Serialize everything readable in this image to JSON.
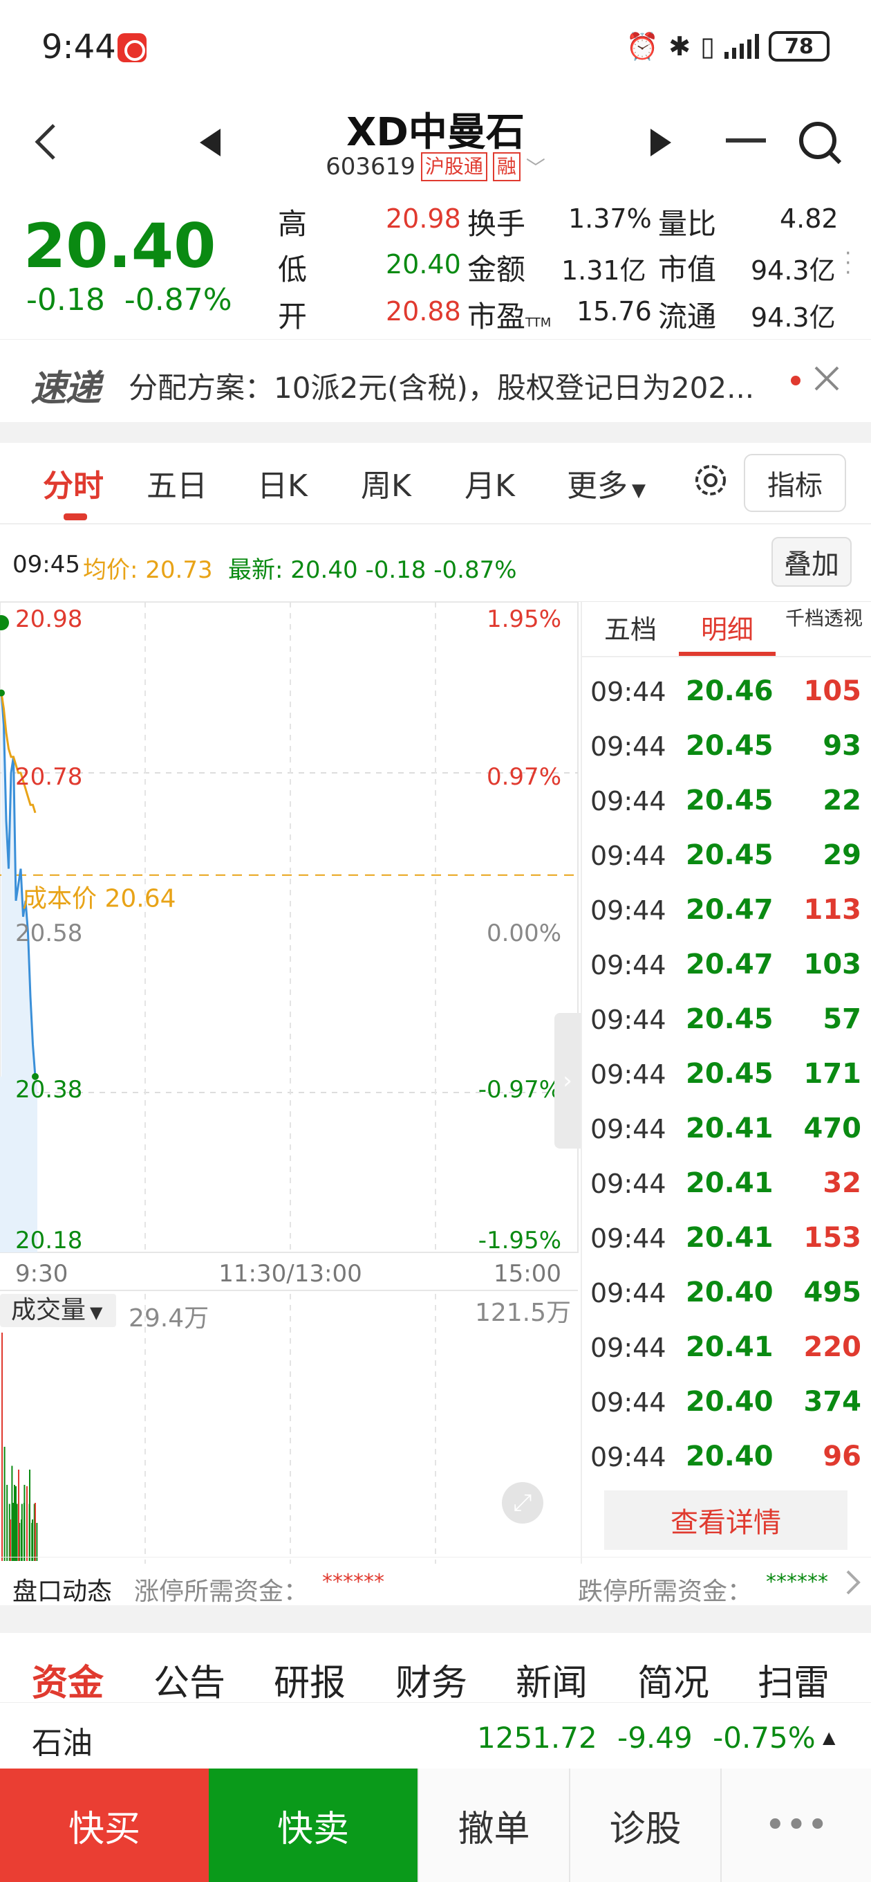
{
  "status_bar": {
    "time": "9:44",
    "battery": "78"
  },
  "header": {
    "title": "XD中曼石",
    "code": "603619",
    "tag_connect": "沪股通",
    "tag_margin": "融"
  },
  "quote": {
    "price": "20.40",
    "change": "-0.18",
    "change_pct": "-0.87%",
    "high_label": "高",
    "high": "20.98",
    "low_label": "低",
    "low": "20.40",
    "open_label": "开",
    "open": "20.88",
    "turnover_label": "换手",
    "turnover": "1.37%",
    "amount_label": "金额",
    "amount": "1.31亿",
    "pe_label": "市盈",
    "pe_sub": "TTM",
    "pe": "15.76",
    "vol_ratio_label": "量比",
    "vol_ratio": "4.82",
    "mkt_cap_label": "市值",
    "mkt_cap": "94.3亿",
    "float_cap_label": "流通",
    "float_cap": "94.3亿"
  },
  "news": {
    "logo": "速递",
    "text": "分配方案：10派2元(含税)，股权登记日为202..."
  },
  "chart_tabs": {
    "items": [
      "分时",
      "五日",
      "日K",
      "周K",
      "月K",
      "更多"
    ],
    "active": "分时",
    "index_button": "指标"
  },
  "info_line": {
    "time": "09:45",
    "avg_label": "均价:",
    "avg": "20.73",
    "latest_label": "最新:",
    "latest": "20.40",
    "latest_chg": "-0.18",
    "latest_pct": "-0.87%",
    "overlay_button": "叠加"
  },
  "chart": {
    "price_levels": [
      "20.98",
      "20.78",
      "20.58",
      "20.38",
      "20.18"
    ],
    "pct_levels": [
      "1.95%",
      "0.97%",
      "0.00%",
      "-0.97%",
      "-1.95%"
    ],
    "cost_label": "成本价 20.64",
    "time_labels": [
      "9:30",
      "11:30/13:00",
      "15:00"
    ],
    "volume_label": "成交量",
    "volume_value": "29.4万",
    "volume_max": "121.5万"
  },
  "chart_data": {
    "type": "line",
    "title": "",
    "xlabel": "",
    "ylabel": "",
    "ylim": [
      20.18,
      20.98
    ],
    "x": [
      "09:30",
      "09:31",
      "09:32",
      "09:33",
      "09:34",
      "09:35",
      "09:36",
      "09:37",
      "09:38",
      "09:39",
      "09:40",
      "09:41",
      "09:42",
      "09:43",
      "09:44"
    ],
    "series": [
      {
        "name": "price",
        "values": [
          20.88,
          20.84,
          20.72,
          20.66,
          20.78,
          20.8,
          20.62,
          20.64,
          20.66,
          20.6,
          20.62,
          20.58,
          20.5,
          20.44,
          20.4
        ]
      },
      {
        "name": "average",
        "values": [
          20.88,
          20.86,
          20.83,
          20.81,
          20.8,
          20.8,
          20.79,
          20.78,
          20.78,
          20.77,
          20.76,
          20.75,
          20.74,
          20.74,
          20.73
        ]
      }
    ],
    "volume": [
      12,
      6,
      4,
      3,
      5,
      4,
      3,
      2,
      3,
      4,
      2,
      3,
      2,
      3,
      2
    ]
  },
  "detail": {
    "tabs": [
      "五档",
      "明细",
      "千档透视"
    ],
    "active": "明细",
    "rows": [
      {
        "time": "09:44",
        "price": "20.46",
        "vol": "105",
        "dir": "red"
      },
      {
        "time": "09:44",
        "price": "20.45",
        "vol": "93",
        "dir": "green"
      },
      {
        "time": "09:44",
        "price": "20.45",
        "vol": "22",
        "dir": "green"
      },
      {
        "time": "09:44",
        "price": "20.45",
        "vol": "29",
        "dir": "green"
      },
      {
        "time": "09:44",
        "price": "20.47",
        "vol": "113",
        "dir": "red"
      },
      {
        "time": "09:44",
        "price": "20.47",
        "vol": "103",
        "dir": "green"
      },
      {
        "time": "09:44",
        "price": "20.45",
        "vol": "57",
        "dir": "green"
      },
      {
        "time": "09:44",
        "price": "20.45",
        "vol": "171",
        "dir": "green"
      },
      {
        "time": "09:44",
        "price": "20.41",
        "vol": "470",
        "dir": "green"
      },
      {
        "time": "09:44",
        "price": "20.41",
        "vol": "32",
        "dir": "red"
      },
      {
        "time": "09:44",
        "price": "20.41",
        "vol": "153",
        "dir": "red"
      },
      {
        "time": "09:44",
        "price": "20.40",
        "vol": "495",
        "dir": "green"
      },
      {
        "time": "09:44",
        "price": "20.41",
        "vol": "220",
        "dir": "red"
      },
      {
        "time": "09:44",
        "price": "20.40",
        "vol": "374",
        "dir": "green"
      },
      {
        "time": "09:44",
        "price": "20.40",
        "vol": "96",
        "dir": "red"
      }
    ],
    "more_button": "查看详情"
  },
  "pankou": {
    "title": "盘口动态",
    "limit_up_label": "涨停所需资金：",
    "limit_up_value": "******",
    "limit_down_label": "跌停所需资金：",
    "limit_down_value": "******"
  },
  "bottom_tabs": {
    "items": [
      "资金",
      "公告",
      "研报",
      "财务",
      "新闻",
      "简况",
      "扫雷"
    ],
    "active": "资金"
  },
  "sector": {
    "name": "石油",
    "value": "1251.72",
    "change": "-9.49",
    "pct": "-0.75%"
  },
  "actions": {
    "buy": "快买",
    "sell": "快卖",
    "cancel": "撤单",
    "diagnose": "诊股",
    "more": "•••"
  },
  "colors": {
    "up": "#e03a2f",
    "down": "#0a8a12",
    "avg_line": "#e8a317",
    "price_line": "#3a8fd8"
  }
}
